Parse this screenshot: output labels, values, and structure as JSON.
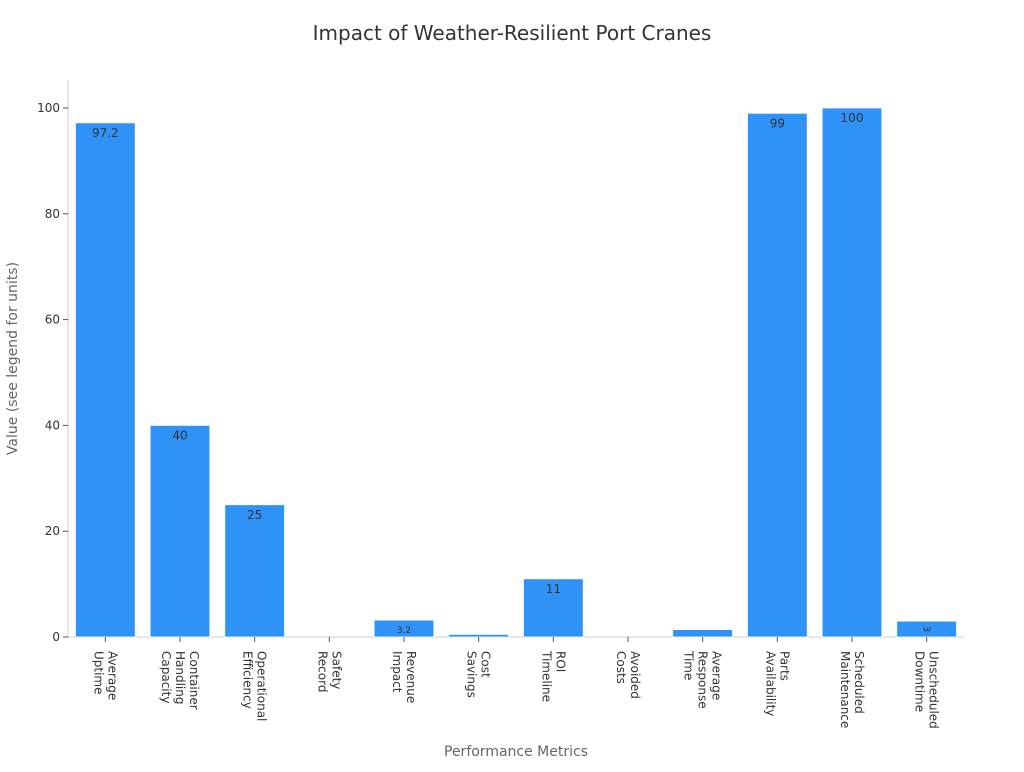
{
  "chart_data": {
    "type": "bar",
    "title": "Impact of Weather-Resilient Port Cranes",
    "xlabel": "Performance Metrics",
    "ylabel": "Value (see legend for units)",
    "ylim": [
      0,
      105
    ],
    "yticks": [
      0,
      20,
      40,
      60,
      80,
      100
    ],
    "grid": false,
    "bar_color": "#2f92f7",
    "categories": [
      [
        "Average",
        "Uptime"
      ],
      [
        "Container",
        "Handling",
        "Capacity"
      ],
      [
        "Operational",
        "Efficiency"
      ],
      [
        "Safety",
        "Record"
      ],
      [
        "Revenue",
        "Impact"
      ],
      [
        "Cost",
        "Savings"
      ],
      [
        "ROI",
        "Timeline"
      ],
      [
        "Avoided",
        "Costs"
      ],
      [
        "Average",
        "Response",
        "Time"
      ],
      [
        "Parts",
        "Availability"
      ],
      [
        "Scheduled",
        "Maintenance"
      ],
      [
        "Unscheduled",
        "Downtime"
      ]
    ],
    "values": [
      97.2,
      40,
      25,
      0,
      3.2,
      0.5,
      11,
      0,
      1.4,
      99,
      100,
      3
    ],
    "data_labels": [
      "97.2",
      "40",
      "25",
      "",
      "3.2",
      "",
      "11",
      "",
      "",
      "99",
      "100",
      "3"
    ]
  }
}
